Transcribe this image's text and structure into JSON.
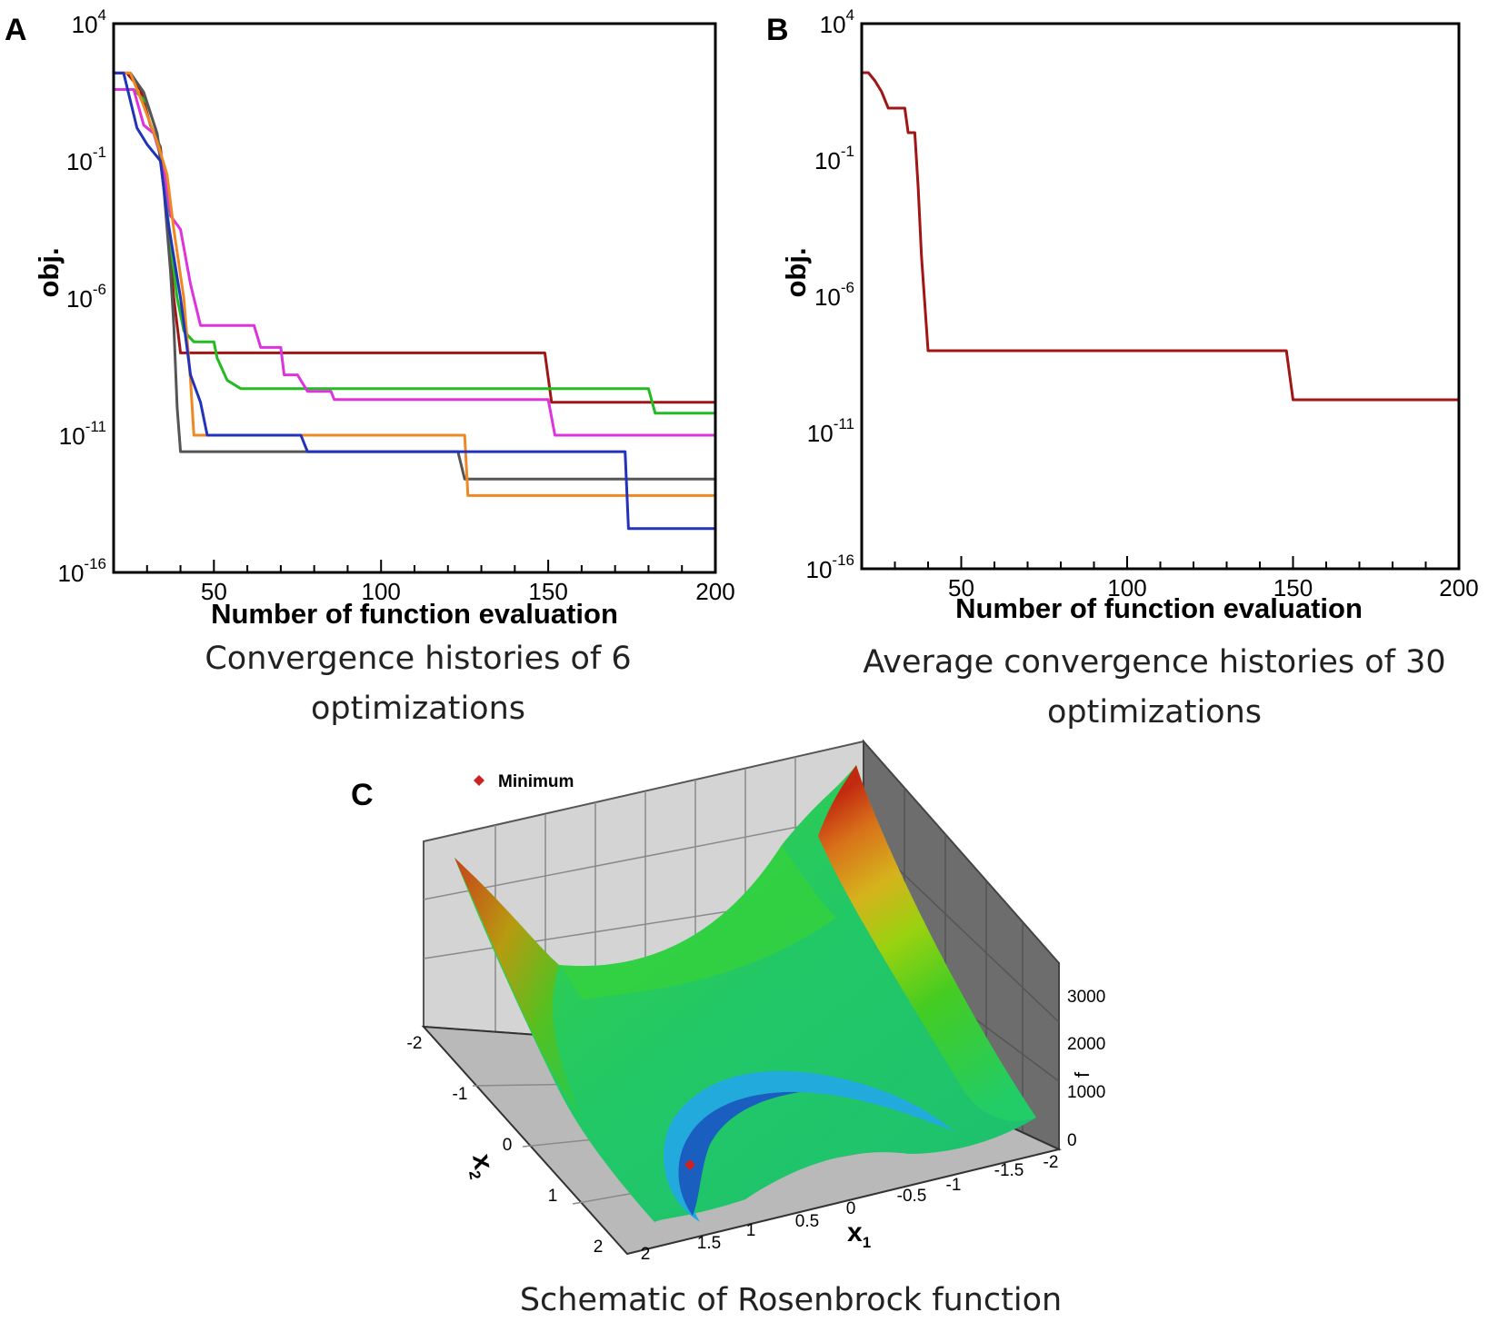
{
  "panels": {
    "a": {
      "letter": "A",
      "caption_line1": "Convergence histories of 6",
      "caption_line2": "optimizations"
    },
    "b": {
      "letter": "B",
      "caption_line1": "Average convergence histories of 30",
      "caption_line2": "optimizations"
    },
    "c": {
      "letter": "C",
      "caption": "Schematic of Rosenbrock function"
    }
  },
  "chart_data": [
    {
      "type": "line",
      "xlabel": "Number of function evaluation",
      "ylabel": "obj.",
      "xlim": [
        20,
        200
      ],
      "ylim_log10": [
        -16,
        4
      ],
      "y_scale": "log",
      "xticks": [
        50,
        100,
        150,
        200
      ],
      "yticks": [
        "10^4",
        "10^-1",
        "10^-6",
        "10^-11",
        "10^-16"
      ],
      "ytick_exponents": [
        4,
        -1,
        -6,
        -11,
        -16
      ],
      "series": [
        {
          "color": "#a01616",
          "x": [
            20,
            24,
            28,
            31,
            34,
            36,
            38,
            40,
            149,
            151,
            200
          ],
          "log10_y": [
            2.2,
            2.2,
            1.6,
            0.3,
            -0.5,
            -3.0,
            -6.0,
            -8.0,
            -8.0,
            -9.8,
            -9.8
          ]
        },
        {
          "color": "#22bb22",
          "x": [
            20,
            26,
            30,
            33,
            35,
            37,
            39,
            41,
            44,
            50,
            51,
            54,
            58,
            150,
            180,
            182,
            200
          ],
          "log10_y": [
            1.6,
            1.6,
            1.1,
            0.0,
            -1.5,
            -4.0,
            -6.0,
            -7.2,
            -7.6,
            -7.6,
            -8.2,
            -9.0,
            -9.3,
            -9.3,
            -9.3,
            -10.2,
            -10.2
          ]
        },
        {
          "color": "#dd33dd",
          "x": [
            20,
            26,
            29,
            32,
            35,
            37,
            40,
            43,
            46,
            62,
            64,
            70,
            71,
            75,
            78,
            85,
            86,
            150,
            152,
            200
          ],
          "log10_y": [
            1.6,
            1.6,
            0.3,
            0.0,
            -1.2,
            -3.0,
            -3.5,
            -5.5,
            -7.0,
            -7.0,
            -7.8,
            -7.8,
            -8.8,
            -8.8,
            -9.4,
            -9.4,
            -9.7,
            -9.7,
            -11.0,
            -11.0
          ]
        },
        {
          "color": "#555555",
          "x": [
            20,
            25,
            29,
            33,
            35,
            37,
            38,
            39,
            40,
            123,
            125,
            200
          ],
          "log10_y": [
            2.2,
            2.2,
            1.5,
            0.0,
            -2.0,
            -5.0,
            -7.0,
            -10.0,
            -11.6,
            -11.6,
            -12.6,
            -12.6
          ]
        },
        {
          "color": "#ee8822",
          "x": [
            20,
            25,
            29,
            33,
            36,
            38,
            41,
            43,
            44,
            125,
            126,
            200
          ],
          "log10_y": [
            2.2,
            2.2,
            1.0,
            -0.3,
            -1.5,
            -3.5,
            -6.0,
            -9.0,
            -11.0,
            -11.0,
            -13.2,
            -13.2
          ]
        },
        {
          "color": "#2233bb",
          "x": [
            20,
            23,
            27,
            30,
            34,
            36,
            38,
            40,
            43,
            46,
            48,
            76,
            78,
            173,
            174,
            200
          ],
          "log10_y": [
            2.2,
            2.2,
            0.2,
            -0.4,
            -1.0,
            -3.0,
            -4.5,
            -6.0,
            -8.8,
            -9.8,
            -11.0,
            -11.0,
            -11.6,
            -11.6,
            -14.4,
            -14.4
          ]
        }
      ]
    },
    {
      "type": "line",
      "xlabel": "Number of function evaluation",
      "ylabel": "obj.",
      "xlim": [
        20,
        200
      ],
      "ylim_log10": [
        -16,
        4
      ],
      "y_scale": "log",
      "xticks": [
        50,
        100,
        150,
        200
      ],
      "yticks": [
        "10^4",
        "10^-1",
        "10^-6",
        "10^-11",
        "10^-16"
      ],
      "ytick_exponents": [
        4,
        -1,
        -6,
        -11,
        -16
      ],
      "series": [
        {
          "color": "#a01616",
          "x": [
            20,
            22,
            24,
            26,
            28,
            33,
            34,
            36,
            37,
            38,
            40,
            148,
            150,
            200
          ],
          "log10_y": [
            2.2,
            2.2,
            1.9,
            1.5,
            0.9,
            0.9,
            0.0,
            0.0,
            -2.0,
            -4.5,
            -8.0,
            -8.0,
            -9.8,
            -9.8
          ]
        }
      ]
    },
    {
      "type": "surface",
      "legend": "Minimum",
      "xlabel": "x",
      "xlabel_sub": "1",
      "ylabel": "x",
      "ylabel_sub": "2",
      "zlabel": "f",
      "xticks": [
        "2",
        "1.5",
        "1",
        "0.5",
        "0",
        "-0.5",
        "-1",
        "-1.5",
        "-2"
      ],
      "yticks": [
        "-2",
        "-1",
        "0",
        "1",
        "2"
      ],
      "zticks": [
        "3000",
        "2000",
        "1000",
        "0"
      ],
      "colors": {
        "high": "#c03010",
        "mid": "#8ccc00",
        "low": "#22cc55",
        "valley": "#3399dd",
        "floor": "#b9b9b9",
        "back_wall": "#d4d4d4",
        "side_wall": "#6d6d6d",
        "minimum_marker": "#cc2222"
      }
    }
  ]
}
